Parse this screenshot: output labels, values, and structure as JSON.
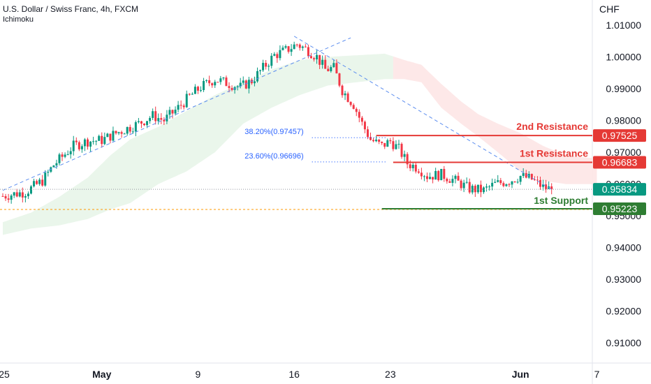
{
  "header": {
    "title": "U.S. Dollar / Swiss Franc, 4h, FXCM",
    "indicator": "Ichimoku"
  },
  "colors": {
    "up": "#089981",
    "down": "#f23645",
    "resistance": "#e53935",
    "support": "#2e7d32",
    "cloud_bull": "#e8f5e9",
    "cloud_bear": "#fde5e5",
    "fib": "#2962ff",
    "trend": "#5b8def",
    "current": "#ff9800"
  },
  "chart_data": {
    "type": "candlestick",
    "currency": "CHF",
    "ylim": [
      0.905,
      1.0135
    ],
    "yticks": [
      "1.01000",
      "1.00000",
      "0.99000",
      "0.98000",
      "0.97000",
      "0.96000",
      "0.95000",
      "0.94000",
      "0.93000",
      "0.92000",
      "0.91000"
    ],
    "xticks": [
      {
        "label": "25",
        "bar": 0,
        "bold": false
      },
      {
        "label": "May",
        "bar": 35,
        "bold": true
      },
      {
        "label": "9",
        "bar": 69,
        "bold": false
      },
      {
        "label": "16",
        "bar": 103,
        "bold": false
      },
      {
        "label": "23",
        "bar": 137,
        "bold": false
      },
      {
        "label": "Jun",
        "bar": 183,
        "bold": true
      },
      {
        "label": "7",
        "bar": 210,
        "bold": false
      }
    ],
    "candle_waypoints": [
      [
        0,
        0.9562
      ],
      [
        8,
        0.9575
      ],
      [
        14,
        0.961
      ],
      [
        18,
        0.966
      ],
      [
        25,
        0.972
      ],
      [
        30,
        0.9735
      ],
      [
        35,
        0.9738
      ],
      [
        40,
        0.976
      ],
      [
        48,
        0.979
      ],
      [
        53,
        0.9815
      ],
      [
        57,
        0.98
      ],
      [
        62,
        0.984
      ],
      [
        66,
        0.9875
      ],
      [
        70,
        0.9905
      ],
      [
        75,
        0.993
      ],
      [
        80,
        0.9915
      ],
      [
        84,
        0.9905
      ],
      [
        88,
        0.9925
      ],
      [
        92,
        0.9965
      ],
      [
        96,
        1.0005
      ],
      [
        100,
        1.002
      ],
      [
        104,
        1.004
      ],
      [
        108,
        1.002
      ],
      [
        111,
        1.0
      ],
      [
        114,
        0.996
      ],
      [
        117,
        0.9965
      ],
      [
        120,
        0.9895
      ],
      [
        124,
        0.985
      ],
      [
        127,
        0.979
      ],
      [
        130,
        0.974
      ],
      [
        134,
        0.972
      ],
      [
        137,
        0.9735
      ],
      [
        140,
        0.971
      ],
      [
        143,
        0.9665
      ],
      [
        147,
        0.965
      ],
      [
        150,
        0.9625
      ],
      [
        155,
        0.963
      ],
      [
        160,
        0.961
      ],
      [
        165,
        0.9585
      ],
      [
        170,
        0.958
      ],
      [
        174,
        0.96
      ],
      [
        179,
        0.961
      ],
      [
        183,
        0.9625
      ],
      [
        187,
        0.9615
      ],
      [
        191,
        0.959
      ],
      [
        194,
        0.9583
      ]
    ],
    "cloud_waypoints": [
      [
        0,
        0.944,
        0.948
      ],
      [
        10,
        0.946,
        0.951
      ],
      [
        20,
        0.947,
        0.956
      ],
      [
        30,
        0.949,
        0.962
      ],
      [
        38,
        0.952,
        0.969
      ],
      [
        45,
        0.954,
        0.974
      ],
      [
        55,
        0.96,
        0.978
      ],
      [
        65,
        0.964,
        0.983
      ],
      [
        75,
        0.97,
        0.988
      ],
      [
        85,
        0.979,
        0.992
      ],
      [
        95,
        0.984,
        0.996
      ],
      [
        105,
        0.988,
        0.999
      ],
      [
        115,
        0.991,
        1.0
      ],
      [
        125,
        0.992,
        1.0005
      ],
      [
        135,
        0.993,
        1.001
      ],
      [
        142,
        0.993,
        0.999
      ],
      [
        148,
        0.992,
        0.9975
      ],
      [
        155,
        0.984,
        0.9915
      ],
      [
        162,
        0.979,
        0.986
      ],
      [
        168,
        0.975,
        0.982
      ],
      [
        175,
        0.97,
        0.979
      ],
      [
        183,
        0.964,
        0.976
      ],
      [
        191,
        0.961,
        0.972
      ],
      [
        199,
        0.96,
        0.969
      ],
      [
        210,
        0.96,
        0.968
      ]
    ],
    "cloud_flip_bar": 138,
    "trendlines": [
      {
        "from": [
          0,
          0.958
        ],
        "to": [
          123,
          1.006
        ],
        "dash": true
      },
      {
        "from": [
          103,
          1.0065
        ],
        "to": [
          194,
          0.9583
        ],
        "dash": true
      }
    ],
    "fib_levels": [
      {
        "label": "38.20%(0.97457)",
        "value": 0.97457,
        "from_bar": 134
      },
      {
        "label": "23.60%(0.96696)",
        "value": 0.96696,
        "from_bar": 134
      }
    ],
    "levels": [
      {
        "name": "2nd Resistance",
        "value": 0.97525,
        "tag": "0.97525",
        "kind": "resistance",
        "from_bar": 132
      },
      {
        "name": "1st Resistance",
        "value": 0.96683,
        "tag": "0.96683",
        "kind": "resistance",
        "from_bar": 138
      },
      {
        "name": "1st Support",
        "value": 0.95223,
        "tag": "0.95223",
        "kind": "support",
        "from_bar": 134
      }
    ],
    "current_price": {
      "value": 0.95834,
      "tag": "0.95834"
    },
    "current_level_line": 0.952
  }
}
